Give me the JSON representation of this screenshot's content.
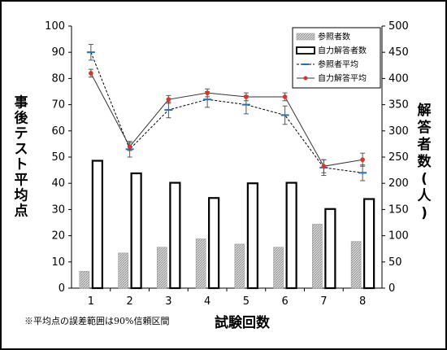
{
  "chart_data": {
    "type": "bar",
    "categories": [
      "1",
      "2",
      "3",
      "4",
      "5",
      "6",
      "7",
      "8"
    ],
    "xlabel": "試験回数",
    "ylabel_left": "事後テスト平均点",
    "ylabel_right": "解答者数(人)",
    "ylim_left": [
      0,
      100
    ],
    "ylim_right": [
      0,
      500
    ],
    "yticks_left": [
      "0",
      "10",
      "20",
      "30",
      "40",
      "50",
      "60",
      "70",
      "80",
      "90",
      "100"
    ],
    "yticks_right": [
      "0",
      "50",
      "100",
      "150",
      "200",
      "250",
      "300",
      "350",
      "400",
      "450",
      "500"
    ],
    "bar_series": [
      {
        "name": "参照者数",
        "values": [
          32,
          67,
          78,
          94,
          84,
          78,
          122,
          89
        ],
        "color": "#c8c8c8",
        "pattern": "hatched"
      },
      {
        "name": "自力解答者数",
        "values": [
          243,
          219,
          201,
          172,
          200,
          201,
          151,
          170
        ],
        "color": "#ffffff",
        "pattern": "outline"
      }
    ],
    "line_series": [
      {
        "name": "参照者平均",
        "values": [
          90,
          53,
          68,
          72,
          70,
          66,
          46,
          44
        ],
        "error": [
          3,
          3,
          3,
          3,
          3.5,
          3.5,
          3,
          3
        ],
        "color": "#1f6fbf",
        "dash": true
      },
      {
        "name": "自力解答平均",
        "values": [
          82,
          54,
          72,
          74.5,
          73,
          73,
          46.5,
          49
        ],
        "error": [
          1.5,
          1.5,
          1.5,
          1.5,
          1.5,
          1.5,
          2.5,
          2.5
        ],
        "color": "#d9332b",
        "dash": false
      }
    ],
    "legend_position": "top-right",
    "grid": false
  },
  "footnote": "※平均点の誤差範囲は90%信頼区間"
}
